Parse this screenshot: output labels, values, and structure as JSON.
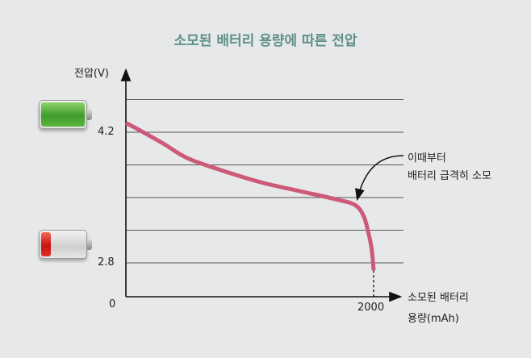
{
  "chart_data": {
    "type": "line",
    "title": "소모된 배터리 용량에 따른 전압",
    "ylabel": "전압(V)",
    "xlabel_line1": "소모된 배터리",
    "xlabel_line2": "용량(mAh)",
    "y_ticks": [
      "4.2",
      "2.8"
    ],
    "origin_label": "0",
    "x_ticks": [
      "2000"
    ],
    "ylim": [
      2.45,
      4.88
    ],
    "xlim": [
      0,
      2200
    ],
    "grid": true,
    "gridlines_v": [
      4.55,
      4.2,
      3.85,
      3.5,
      3.15,
      2.8
    ],
    "series": [
      {
        "name": "전압",
        "color": "#cc5a78",
        "x": [
          0,
          100,
          300,
          500,
          800,
          1100,
          1400,
          1700,
          1850,
          1920,
          1960,
          1985,
          2000
        ],
        "y": [
          4.3,
          4.23,
          4.08,
          3.92,
          3.78,
          3.66,
          3.57,
          3.48,
          3.42,
          3.3,
          3.11,
          2.94,
          2.72
        ]
      }
    ],
    "annotation": {
      "line1": "이때부터",
      "line2": "배터리 급격히 소모",
      "x": 1850,
      "y": 3.42
    },
    "icons": {
      "full": "battery-full-icon",
      "low": "battery-low-icon"
    }
  }
}
